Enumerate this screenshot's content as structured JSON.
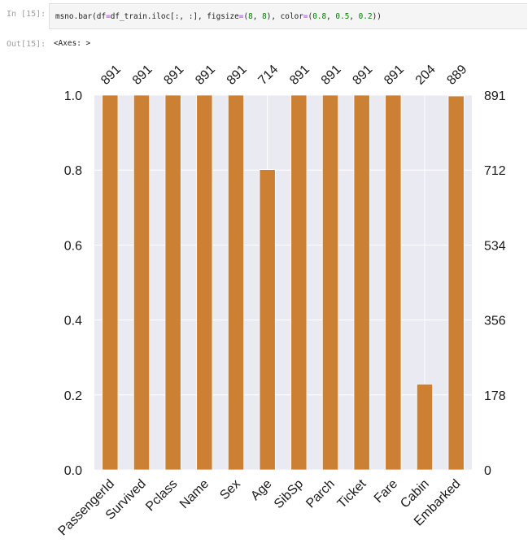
{
  "cell": {
    "in_prompt": "In [15]:",
    "out_prompt": "Out[15]:",
    "code_tokens": [
      {
        "t": "msno.bar(df",
        "c": ""
      },
      {
        "t": "=",
        "c": "op"
      },
      {
        "t": "df_train.iloc[:, :], figsize",
        "c": ""
      },
      {
        "t": "=",
        "c": "op"
      },
      {
        "t": "(",
        "c": ""
      },
      {
        "t": "8",
        "c": "num"
      },
      {
        "t": ", ",
        "c": ""
      },
      {
        "t": "8",
        "c": "num"
      },
      {
        "t": "), color",
        "c": ""
      },
      {
        "t": "=",
        "c": "op"
      },
      {
        "t": "(",
        "c": ""
      },
      {
        "t": "0.8",
        "c": "num"
      },
      {
        "t": ", ",
        "c": ""
      },
      {
        "t": "0.5",
        "c": "num"
      },
      {
        "t": ", ",
        "c": ""
      },
      {
        "t": "0.2",
        "c": "num"
      },
      {
        "t": "))",
        "c": ""
      }
    ],
    "output_text": "<Axes: >"
  },
  "chart_data": {
    "type": "bar",
    "categories": [
      "PassengerId",
      "Survived",
      "Pclass",
      "Name",
      "Sex",
      "Age",
      "SibSp",
      "Parch",
      "Ticket",
      "Fare",
      "Cabin",
      "Embarked"
    ],
    "counts": [
      891,
      891,
      891,
      891,
      891,
      714,
      891,
      891,
      891,
      891,
      204,
      889
    ],
    "total": 891,
    "ylim": [
      0,
      1
    ],
    "left_ticks": [
      "0.0",
      "0.2",
      "0.4",
      "0.6",
      "0.8",
      "1.0"
    ],
    "right_ticks": [
      "0",
      "178",
      "356",
      "534",
      "712",
      "891"
    ],
    "bar_color": "#cc8033",
    "background_color": "#eaeaf2",
    "grid": true
  }
}
